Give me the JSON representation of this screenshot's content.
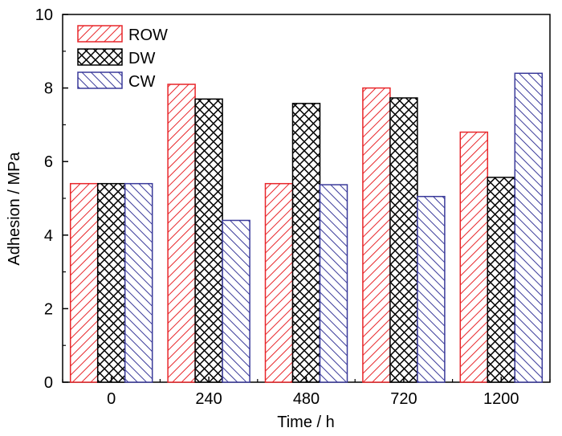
{
  "chart_data": {
    "type": "bar",
    "xlabel": "Time / h",
    "ylabel": "Adhesion / MPa",
    "categories": [
      "0",
      "240",
      "480",
      "720",
      "1200"
    ],
    "ylim": [
      0,
      10
    ],
    "yticks": [
      0,
      2,
      4,
      6,
      8,
      10
    ],
    "legend_position": "top-left",
    "grid": false,
    "series": [
      {
        "name": "ROW",
        "values": [
          5.4,
          8.1,
          5.4,
          8.0,
          6.8
        ],
        "color": "#e8262a",
        "pattern": "diagonal-hatch"
      },
      {
        "name": "DW",
        "values": [
          5.4,
          7.7,
          7.58,
          7.73,
          5.57
        ],
        "color": "#000000",
        "pattern": "cross-hatch"
      },
      {
        "name": "CW",
        "values": [
          5.4,
          4.4,
          5.37,
          5.05,
          8.4
        ],
        "color": "#3a3a9a",
        "pattern": "back-diagonal-hatch"
      }
    ]
  }
}
